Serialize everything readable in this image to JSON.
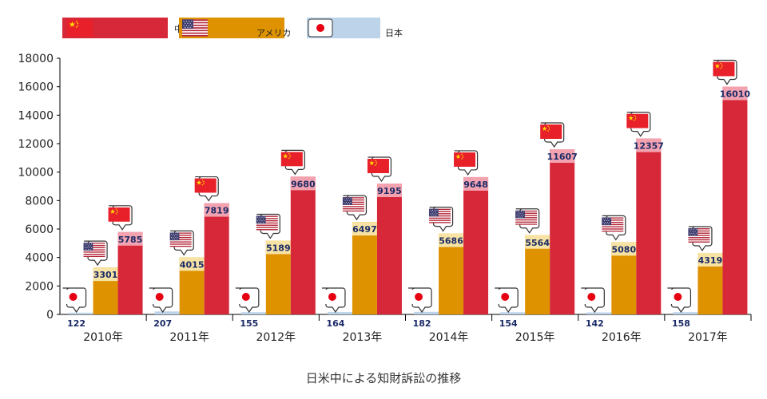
{
  "chart_data": {
    "type": "bar",
    "title": "",
    "caption": "日米中による知財訴訟の推移",
    "categories": [
      "2010年",
      "2011年",
      "2012年",
      "2013年",
      "2014年",
      "2015年",
      "2016年",
      "2017年"
    ],
    "series": [
      {
        "name": "日本",
        "key": "japan",
        "color": "#bcd3ea",
        "flag": "japan-flag-icon",
        "values": [
          122,
          207,
          155,
          164,
          182,
          154,
          142,
          158
        ]
      },
      {
        "name": "アメリカ",
        "key": "usa",
        "color": "#de9200",
        "label_color": "#f7e3a3",
        "flag": "us-flag-icon",
        "values": [
          3301,
          4015,
          5189,
          6497,
          5686,
          5564,
          5080,
          4319
        ]
      },
      {
        "name": "中国",
        "key": "china",
        "color": "#d62839",
        "label_color": "#f3a3b0",
        "flag": "china-flag-icon",
        "values": [
          5785,
          7819,
          9680,
          9195,
          9648,
          11607,
          12357,
          16010
        ]
      }
    ],
    "ylim": [
      0,
      18000
    ],
    "yticks": [
      "0",
      "2000",
      "4000",
      "6000",
      "8000",
      "10000",
      "12000",
      "14000",
      "16000",
      "18000"
    ],
    "legend": {
      "placement": "top-left",
      "entries": [
        "中国",
        "アメリカ",
        "日本"
      ]
    },
    "grid": false
  }
}
